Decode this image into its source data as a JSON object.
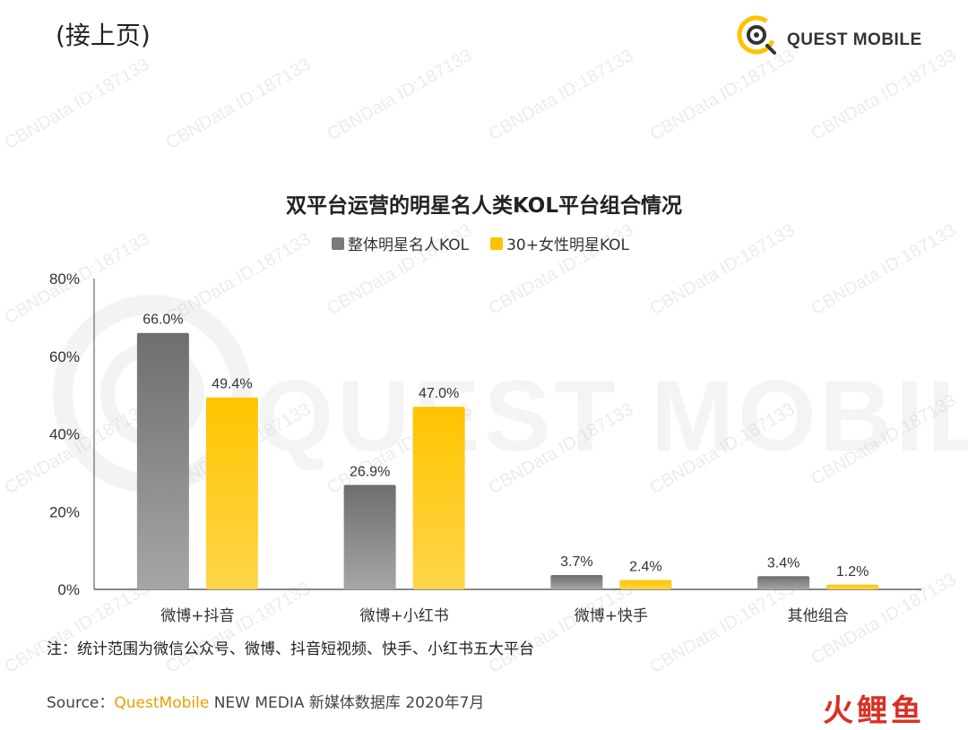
{
  "header": {
    "continued_label": "(接上页)",
    "logo_text": "QUEST MOBILE"
  },
  "watermark": {
    "text": "CBNData ID:187133",
    "big_text": "QUEST MOBILE"
  },
  "colors": {
    "series1": "#808080",
    "series2": "#fdc300",
    "axis": "#444444",
    "brand": "#e8a000"
  },
  "chart_data": {
    "type": "bar",
    "title": "双平台运营的明星名人类KOL平台组合情况",
    "categories": [
      "微博+抖音",
      "微博+小红书",
      "微博+快手",
      "其他组合"
    ],
    "series": [
      {
        "name": "整体明星名人KOL",
        "values": [
          66.0,
          26.9,
          3.7,
          3.4
        ],
        "labels": [
          "66.0%",
          "26.9%",
          "3.7%",
          "3.4%"
        ]
      },
      {
        "name": "30+女性明星KOL",
        "values": [
          49.4,
          47.0,
          2.4,
          1.2
        ],
        "labels": [
          "49.4%",
          "47.0%",
          "2.4%",
          "1.2%"
        ]
      }
    ],
    "ylim": [
      0,
      80
    ],
    "yticks": [
      0,
      20,
      40,
      60,
      80
    ],
    "ytick_labels": [
      "0%",
      "20%",
      "40%",
      "60%",
      "80%"
    ],
    "xlabel": "",
    "ylabel": "",
    "legend_position": "top-center",
    "grid": false
  },
  "footer": {
    "note": "注：统计范围为微信公众号、微博、抖音短视频、快手、小红书五大平台",
    "source_prefix": "Source：",
    "source_brand": "QuestMobile",
    "source_rest": " NEW MEDIA 新媒体数据库 2020年7月",
    "corner_logo": "火鲤鱼"
  }
}
